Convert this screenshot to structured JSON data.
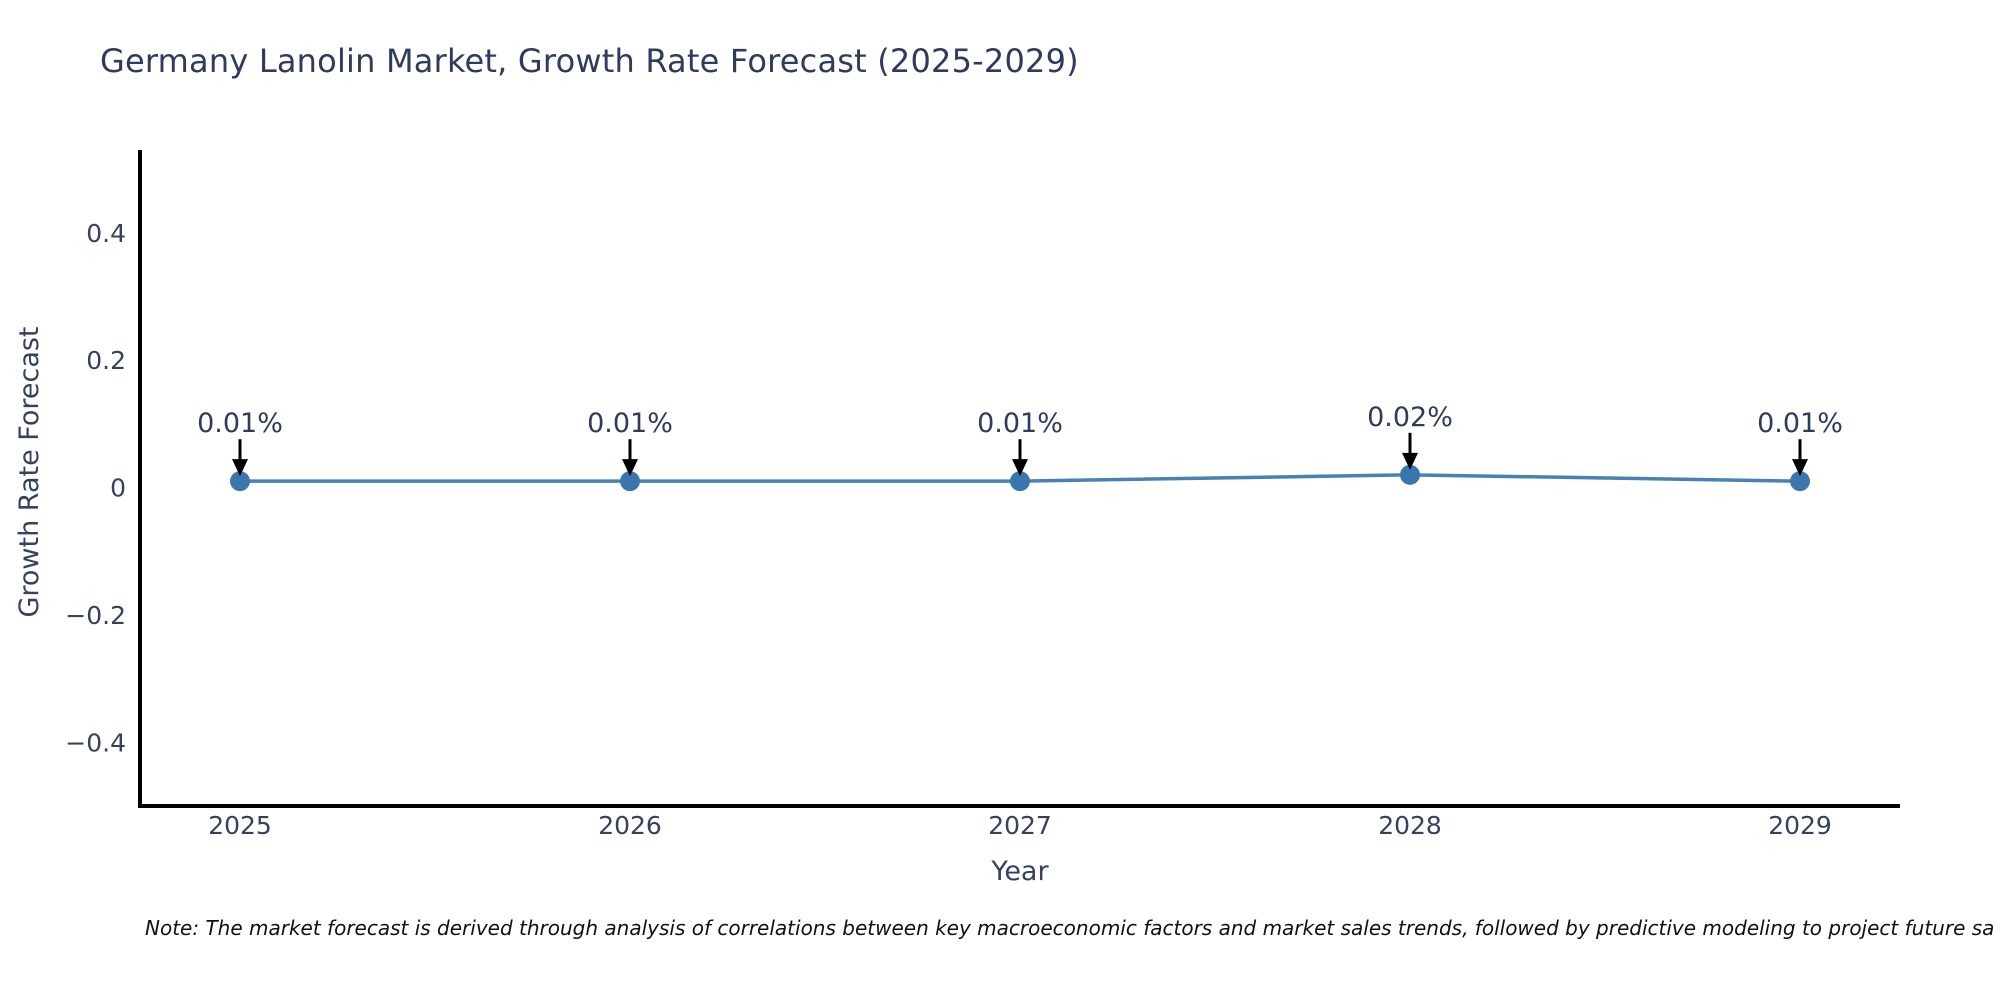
{
  "title": "Germany Lanolin Market, Growth Rate Forecast (2025-2029)",
  "note": "Note: The market forecast is derived through analysis of correlations between key macroeconomic factors and market sales trends, followed by predictive modeling to project future sa",
  "colors": {
    "line": "#4682b4",
    "marker": "#3a76ad",
    "axis": "#000000",
    "arrow": "#000000",
    "title_text": "#2e3b5e",
    "tick_text": "#35415f",
    "annotation_text": "#2e3b5e",
    "note_text": "#111111"
  },
  "chart_data": {
    "type": "line",
    "title": "Germany Lanolin Market, Growth Rate Forecast (2025-2029)",
    "xlabel": "Year",
    "ylabel": "Growth Rate Forecast",
    "categories": [
      "2025",
      "2026",
      "2027",
      "2028",
      "2029"
    ],
    "x": [
      2025,
      2026,
      2027,
      2028,
      2029
    ],
    "values": [
      0.01,
      0.01,
      0.01,
      0.02,
      0.01
    ],
    "point_labels": [
      "0.01%",
      "0.01%",
      "0.01%",
      "0.02%",
      "0.01%"
    ],
    "yticks": [
      0.4,
      0.2,
      0,
      -0.2,
      -0.4
    ],
    "ytick_labels": [
      "0.4",
      "0.2",
      "0",
      "−0.2",
      "−0.4"
    ],
    "ylim": [
      -0.5,
      0.53
    ],
    "grid": false,
    "legend_position": "none",
    "marker": "circle",
    "annotations_have_arrows": true
  }
}
